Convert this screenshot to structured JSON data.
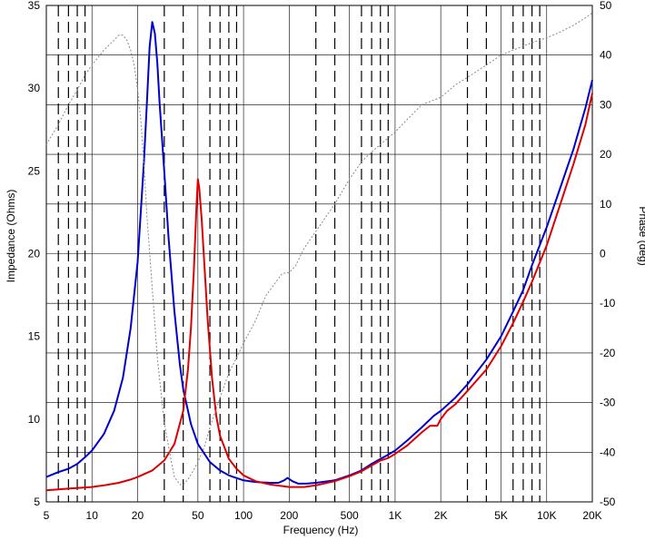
{
  "chart_data": {
    "type": "line",
    "xlabel": "Frequency (Hz)",
    "ylabel": "Impedance (Ohms)",
    "y2label": "Phase (deg)",
    "x_scale": "log",
    "xlim": [
      5,
      20000
    ],
    "ylim": [
      5,
      35
    ],
    "y2lim": [
      -50,
      50
    ],
    "grid": true,
    "x_ticks": [
      {
        "value": 5,
        "label": "5"
      },
      {
        "value": 10,
        "label": "10"
      },
      {
        "value": 20,
        "label": "20"
      },
      {
        "value": 50,
        "label": "50"
      },
      {
        "value": 100,
        "label": "100"
      },
      {
        "value": 200,
        "label": "200"
      },
      {
        "value": 500,
        "label": "500"
      },
      {
        "value": 1000,
        "label": "1K"
      },
      {
        "value": 2000,
        "label": "2K"
      },
      {
        "value": 5000,
        "label": "5K"
      },
      {
        "value": 10000,
        "label": "10K"
      },
      {
        "value": 20000,
        "label": "20K"
      }
    ],
    "y_ticks": [
      {
        "value": 5,
        "label": "5"
      },
      {
        "value": 10,
        "label": "10"
      },
      {
        "value": 15,
        "label": "15"
      },
      {
        "value": 20,
        "label": "20"
      },
      {
        "value": 25,
        "label": "25"
      },
      {
        "value": 30,
        "label": "30"
      },
      {
        "value": 35,
        "label": "35"
      }
    ],
    "y2_ticks": [
      {
        "value": 50,
        "label": "50"
      },
      {
        "value": 40,
        "label": "40"
      },
      {
        "value": 30,
        "label": "30"
      },
      {
        "value": 20,
        "label": "20"
      },
      {
        "value": 10,
        "label": "10"
      },
      {
        "value": 0,
        "label": "0"
      },
      {
        "value": -10,
        "label": "-10"
      },
      {
        "value": -20,
        "label": "-20"
      },
      {
        "value": -30,
        "label": "-30"
      },
      {
        "value": -40,
        "label": "-40"
      },
      {
        "value": -50,
        "label": "-50"
      }
    ],
    "series": [
      {
        "color": "#0000cc",
        "axis": "left",
        "style": "solid",
        "points": [
          [
            5,
            6.5
          ],
          [
            6,
            6.8
          ],
          [
            7,
            7.0
          ],
          [
            8,
            7.3
          ],
          [
            9,
            7.7
          ],
          [
            10,
            8.1
          ],
          [
            12,
            9.1
          ],
          [
            14,
            10.5
          ],
          [
            16,
            12.5
          ],
          [
            18,
            15.5
          ],
          [
            20,
            19.5
          ],
          [
            22,
            25.5
          ],
          [
            23,
            29.0
          ],
          [
            24,
            32.5
          ],
          [
            25,
            34.0
          ],
          [
            26,
            33.3
          ],
          [
            27,
            31.5
          ],
          [
            28,
            29.0
          ],
          [
            30,
            25.0
          ],
          [
            32,
            21.0
          ],
          [
            35,
            16.5
          ],
          [
            38,
            13.3
          ],
          [
            40,
            11.8
          ],
          [
            45,
            9.7
          ],
          [
            50,
            8.5
          ],
          [
            60,
            7.4
          ],
          [
            70,
            6.9
          ],
          [
            80,
            6.6
          ],
          [
            100,
            6.3
          ],
          [
            120,
            6.2
          ],
          [
            150,
            6.15
          ],
          [
            170,
            6.15
          ],
          [
            185,
            6.3
          ],
          [
            195,
            6.45
          ],
          [
            210,
            6.25
          ],
          [
            230,
            6.1
          ],
          [
            260,
            6.1
          ],
          [
            300,
            6.15
          ],
          [
            400,
            6.3
          ],
          [
            500,
            6.6
          ],
          [
            600,
            6.9
          ],
          [
            700,
            7.3
          ],
          [
            800,
            7.6
          ],
          [
            900,
            7.85
          ],
          [
            1000,
            8.1
          ],
          [
            1200,
            8.7
          ],
          [
            1500,
            9.5
          ],
          [
            1800,
            10.2
          ],
          [
            2000,
            10.5
          ],
          [
            2500,
            11.3
          ],
          [
            3000,
            12.1
          ],
          [
            4000,
            13.6
          ],
          [
            5000,
            15.0
          ],
          [
            6000,
            16.5
          ],
          [
            7000,
            17.8
          ],
          [
            8000,
            19.3
          ],
          [
            10000,
            21.6
          ],
          [
            12000,
            23.7
          ],
          [
            15000,
            26.3
          ],
          [
            18000,
            28.8
          ],
          [
            20000,
            30.5
          ]
        ]
      },
      {
        "color": "#dd0000",
        "axis": "left",
        "style": "solid",
        "points": [
          [
            5,
            5.7
          ],
          [
            7,
            5.8
          ],
          [
            10,
            5.9
          ],
          [
            12,
            6.0
          ],
          [
            15,
            6.15
          ],
          [
            18,
            6.35
          ],
          [
            20,
            6.5
          ],
          [
            25,
            6.9
          ],
          [
            30,
            7.5
          ],
          [
            35,
            8.5
          ],
          [
            40,
            10.5
          ],
          [
            43,
            13.0
          ],
          [
            45,
            15.5
          ],
          [
            47,
            19.0
          ],
          [
            49,
            23.0
          ],
          [
            50,
            24.5
          ],
          [
            51,
            24.0
          ],
          [
            53,
            22.0
          ],
          [
            55,
            19.5
          ],
          [
            58,
            16.0
          ],
          [
            62,
            12.5
          ],
          [
            66,
            10.2
          ],
          [
            70,
            9.0
          ],
          [
            80,
            7.6
          ],
          [
            90,
            7.0
          ],
          [
            100,
            6.6
          ],
          [
            120,
            6.25
          ],
          [
            150,
            6.05
          ],
          [
            200,
            5.9
          ],
          [
            250,
            5.9
          ],
          [
            300,
            6.0
          ],
          [
            400,
            6.25
          ],
          [
            500,
            6.55
          ],
          [
            600,
            6.85
          ],
          [
            700,
            7.2
          ],
          [
            800,
            7.5
          ],
          [
            900,
            7.65
          ],
          [
            1000,
            7.9
          ],
          [
            1200,
            8.4
          ],
          [
            1500,
            9.2
          ],
          [
            1700,
            9.6
          ],
          [
            1900,
            9.6
          ],
          [
            2000,
            10.0
          ],
          [
            2200,
            10.5
          ],
          [
            2500,
            10.9
          ],
          [
            3000,
            11.7
          ],
          [
            4000,
            13.0
          ],
          [
            5000,
            14.4
          ],
          [
            6000,
            15.8
          ],
          [
            7000,
            17.1
          ],
          [
            8000,
            18.3
          ],
          [
            10000,
            20.5
          ],
          [
            12000,
            22.7
          ],
          [
            15000,
            25.4
          ],
          [
            18000,
            27.8
          ],
          [
            20000,
            29.7
          ]
        ]
      },
      {
        "color": "#888888",
        "axis": "right",
        "style": "dotted",
        "points": [
          [
            5,
            22
          ],
          [
            6,
            26
          ],
          [
            7,
            30
          ],
          [
            8,
            33
          ],
          [
            9,
            36
          ],
          [
            10,
            38
          ],
          [
            12,
            41
          ],
          [
            14,
            43
          ],
          [
            15,
            44
          ],
          [
            16,
            44
          ],
          [
            17,
            43
          ],
          [
            18,
            41
          ],
          [
            19,
            38
          ],
          [
            20,
            33
          ],
          [
            21,
            27
          ],
          [
            22,
            18
          ],
          [
            23,
            8
          ],
          [
            25,
            -7
          ],
          [
            27,
            -21
          ],
          [
            30,
            -34
          ],
          [
            33,
            -41
          ],
          [
            35,
            -45
          ],
          [
            38,
            -46.5
          ],
          [
            40,
            -46.5
          ],
          [
            43,
            -45.5
          ],
          [
            46,
            -44
          ],
          [
            50,
            -42
          ],
          [
            55,
            -39
          ],
          [
            60,
            -35
          ],
          [
            70,
            -29
          ],
          [
            80,
            -24
          ],
          [
            90,
            -21
          ],
          [
            100,
            -18
          ],
          [
            120,
            -13.5
          ],
          [
            140,
            -8.5
          ],
          [
            170,
            -5
          ],
          [
            180,
            -4
          ],
          [
            200,
            -3.8
          ],
          [
            220,
            -2.5
          ],
          [
            250,
            1
          ],
          [
            300,
            4.5
          ],
          [
            400,
            10
          ],
          [
            500,
            15
          ],
          [
            600,
            18.5
          ],
          [
            700,
            20.5
          ],
          [
            800,
            22
          ],
          [
            1000,
            24.5
          ],
          [
            1200,
            27
          ],
          [
            1500,
            30
          ],
          [
            2000,
            31.5
          ],
          [
            2500,
            34
          ],
          [
            3000,
            35.5
          ],
          [
            4000,
            38
          ],
          [
            5000,
            40
          ],
          [
            6000,
            41
          ],
          [
            8000,
            42.5
          ],
          [
            10000,
            43.5
          ],
          [
            12000,
            44.5
          ],
          [
            15000,
            46
          ],
          [
            18000,
            47.5
          ],
          [
            20000,
            48.5
          ]
        ]
      }
    ]
  }
}
